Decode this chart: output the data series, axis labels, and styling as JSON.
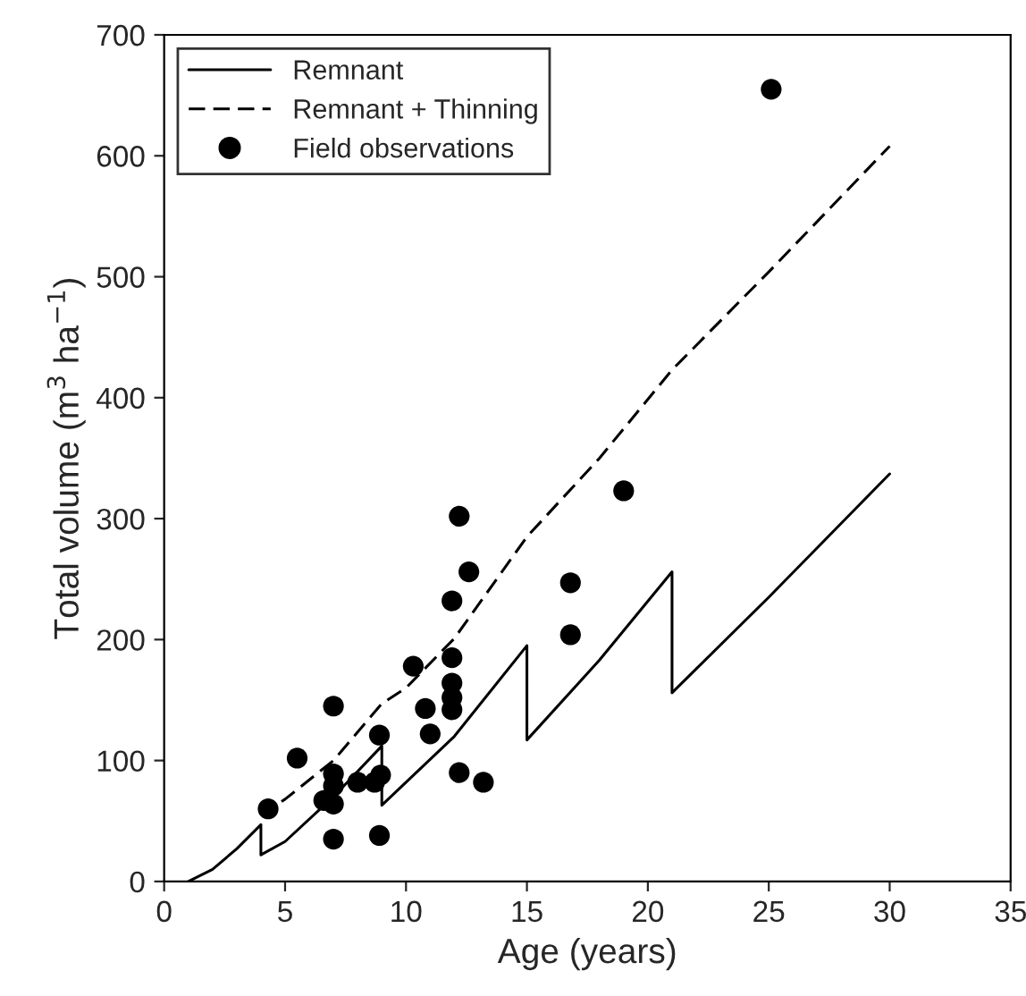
{
  "chart_data": {
    "type": "line",
    "xlabel": "Age (years)",
    "ylabel": "Total volume (m$^{3}$ ha$^{−1}$)",
    "xlim": [
      0,
      35
    ],
    "xticks": [
      0,
      5,
      10,
      15,
      20,
      25,
      30,
      35
    ],
    "ylim": [
      0,
      700
    ],
    "yticks": [
      0,
      100,
      200,
      300,
      400,
      500,
      600,
      700
    ],
    "grid": false,
    "legend": "top left",
    "series": [
      {
        "name": "Remnant",
        "line_style": "solid",
        "marker": "none",
        "color": "#000000",
        "x": [
          1,
          2,
          3,
          4,
          4,
          5,
          7,
          9,
          9,
          12,
          15,
          15,
          18,
          21,
          21,
          25,
          30
        ],
        "values": [
          0,
          10,
          27,
          47,
          22,
          33,
          70,
          112,
          63,
          120,
          195,
          117,
          183,
          256,
          156,
          235,
          337
        ]
      },
      {
        "name": "Remnant + Thinning",
        "line_style": "dashed",
        "marker": "none",
        "color": "#000000",
        "x": [
          4,
          5,
          7,
          9,
          10,
          12,
          15,
          18,
          21,
          25,
          30
        ],
        "values": [
          55,
          68,
          100,
          147,
          160,
          201,
          285,
          350,
          423,
          504,
          608
        ]
      },
      {
        "name": "Field observations",
        "type": "scatter",
        "marker": "circle",
        "color": "#000000",
        "x": [
          4.3,
          5.5,
          6.6,
          7.0,
          7.0,
          7.0,
          7.0,
          7.0,
          8.0,
          8.7,
          8.95,
          8.9,
          8.9,
          10.3,
          10.8,
          11.0,
          11.9,
          11.9,
          11.9,
          11.9,
          11.9,
          12.2,
          12.2,
          12.6,
          13.2,
          16.8,
          16.8,
          19.0,
          25.1
        ],
        "values": [
          60,
          102,
          67,
          89,
          79,
          64,
          35,
          145,
          82,
          82,
          88,
          121,
          38,
          178,
          143,
          122,
          232,
          185,
          164,
          152,
          142,
          302,
          90,
          256,
          82,
          247,
          204,
          323,
          655
        ]
      }
    ]
  }
}
